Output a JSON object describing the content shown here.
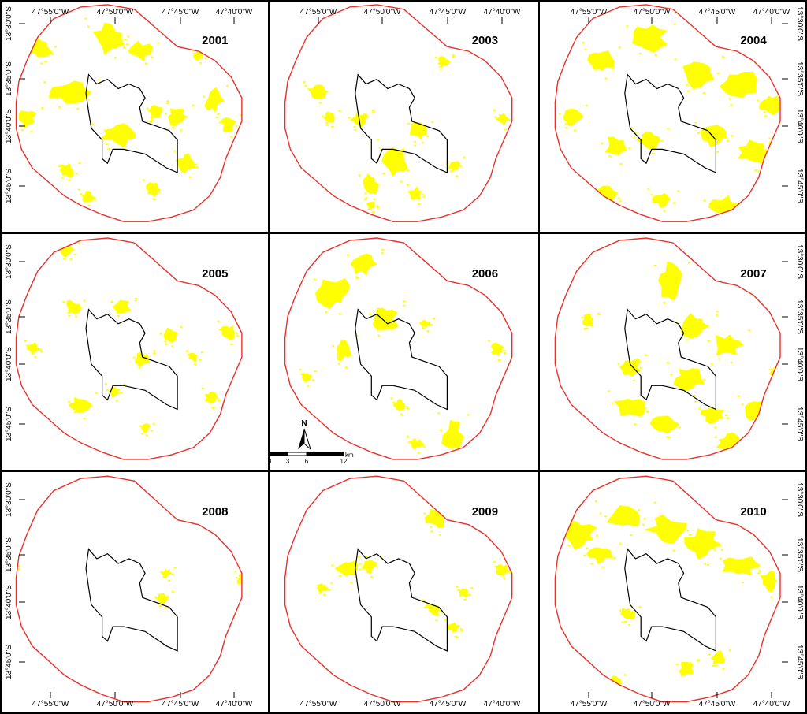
{
  "figure": {
    "panels": [
      {
        "year": "2001",
        "burned": [
          [
            0.1,
            0.16,
            0.1,
            0.09
          ],
          [
            0.34,
            0.1,
            0.13,
            0.13
          ],
          [
            0.48,
            0.18,
            0.09,
            0.08
          ],
          [
            0.18,
            0.34,
            0.16,
            0.11
          ],
          [
            0.06,
            0.46,
            0.08,
            0.09
          ],
          [
            0.36,
            0.52,
            0.17,
            0.11
          ],
          [
            0.55,
            0.44,
            0.06,
            0.07
          ],
          [
            0.62,
            0.46,
            0.08,
            0.08
          ],
          [
            0.76,
            0.38,
            0.07,
            0.1
          ],
          [
            0.82,
            0.5,
            0.06,
            0.07
          ],
          [
            0.66,
            0.66,
            0.07,
            0.08
          ],
          [
            0.54,
            0.78,
            0.05,
            0.06
          ],
          [
            0.3,
            0.82,
            0.05,
            0.05
          ],
          [
            0.72,
            0.22,
            0.04,
            0.04
          ],
          [
            0.22,
            0.7,
            0.06,
            0.06
          ]
        ]
      },
      {
        "year": "2003",
        "burned": [
          [
            0.14,
            0.36,
            0.07,
            0.07
          ],
          [
            0.42,
            0.62,
            0.1,
            0.14
          ],
          [
            0.52,
            0.52,
            0.07,
            0.08
          ],
          [
            0.34,
            0.74,
            0.07,
            0.1
          ],
          [
            0.62,
            0.24,
            0.05,
            0.05
          ],
          [
            0.3,
            0.48,
            0.07,
            0.07
          ],
          [
            0.2,
            0.48,
            0.05,
            0.05
          ],
          [
            0.66,
            0.68,
            0.05,
            0.06
          ],
          [
            0.84,
            0.48,
            0.05,
            0.06
          ],
          [
            0.52,
            0.8,
            0.05,
            0.06
          ],
          [
            0.36,
            0.86,
            0.04,
            0.04
          ]
        ]
      },
      {
        "year": "2004",
        "burned": [
          [
            0.18,
            0.2,
            0.1,
            0.12
          ],
          [
            0.34,
            0.1,
            0.14,
            0.12
          ],
          [
            0.52,
            0.24,
            0.14,
            0.14
          ],
          [
            0.68,
            0.3,
            0.14,
            0.14
          ],
          [
            0.82,
            0.4,
            0.09,
            0.09
          ],
          [
            0.08,
            0.46,
            0.08,
            0.08
          ],
          [
            0.24,
            0.58,
            0.1,
            0.1
          ],
          [
            0.36,
            0.56,
            0.1,
            0.08
          ],
          [
            0.6,
            0.54,
            0.1,
            0.09
          ],
          [
            0.74,
            0.6,
            0.12,
            0.11
          ],
          [
            0.2,
            0.8,
            0.1,
            0.09
          ],
          [
            0.42,
            0.82,
            0.08,
            0.07
          ],
          [
            0.62,
            0.84,
            0.14,
            0.1
          ],
          [
            0.82,
            0.76,
            0.08,
            0.09
          ],
          [
            0.86,
            0.58,
            0.06,
            0.06
          ]
        ]
      },
      {
        "year": "2005",
        "burned": [
          [
            0.22,
            0.04,
            0.06,
            0.06
          ],
          [
            0.24,
            0.28,
            0.06,
            0.06
          ],
          [
            0.42,
            0.28,
            0.07,
            0.06
          ],
          [
            0.5,
            0.5,
            0.06,
            0.06
          ],
          [
            0.6,
            0.4,
            0.06,
            0.06
          ],
          [
            0.26,
            0.68,
            0.08,
            0.08
          ],
          [
            0.4,
            0.64,
            0.05,
            0.05
          ],
          [
            0.82,
            0.38,
            0.06,
            0.07
          ],
          [
            0.76,
            0.66,
            0.05,
            0.06
          ],
          [
            0.1,
            0.46,
            0.05,
            0.05
          ],
          [
            0.7,
            0.5,
            0.04,
            0.04
          ],
          [
            0.52,
            0.8,
            0.04,
            0.04
          ]
        ]
      },
      {
        "year": "2006",
        "burned": [
          [
            0.18,
            0.18,
            0.12,
            0.14
          ],
          [
            0.3,
            0.08,
            0.1,
            0.1
          ],
          [
            0.38,
            0.3,
            0.1,
            0.12
          ],
          [
            0.24,
            0.44,
            0.07,
            0.1
          ],
          [
            0.56,
            0.36,
            0.04,
            0.04
          ],
          [
            0.64,
            0.78,
            0.08,
            0.14
          ],
          [
            0.52,
            0.86,
            0.05,
            0.05
          ],
          [
            0.82,
            0.46,
            0.05,
            0.06
          ],
          [
            0.46,
            0.7,
            0.05,
            0.05
          ],
          [
            0.12,
            0.58,
            0.04,
            0.05
          ]
        ]
      },
      {
        "year": "2007",
        "burned": [
          [
            0.44,
            0.12,
            0.1,
            0.16
          ],
          [
            0.52,
            0.34,
            0.12,
            0.1
          ],
          [
            0.64,
            0.42,
            0.12,
            0.1
          ],
          [
            0.3,
            0.52,
            0.08,
            0.08
          ],
          [
            0.5,
            0.56,
            0.12,
            0.1
          ],
          [
            0.28,
            0.68,
            0.12,
            0.1
          ],
          [
            0.42,
            0.76,
            0.1,
            0.08
          ],
          [
            0.6,
            0.72,
            0.1,
            0.08
          ],
          [
            0.76,
            0.7,
            0.1,
            0.1
          ],
          [
            0.66,
            0.84,
            0.1,
            0.08
          ],
          [
            0.86,
            0.56,
            0.05,
            0.06
          ],
          [
            0.16,
            0.34,
            0.05,
            0.06
          ]
        ]
      },
      {
        "year": "2008",
        "burned": [
          [
            0.02,
            0.4,
            0.04,
            0.08
          ],
          [
            0.58,
            0.5,
            0.05,
            0.05
          ],
          [
            0.6,
            0.4,
            0.04,
            0.04
          ],
          [
            0.88,
            0.42,
            0.04,
            0.05
          ]
        ]
      },
      {
        "year": "2009",
        "burned": [
          [
            0.58,
            0.14,
            0.08,
            0.1
          ],
          [
            0.24,
            0.36,
            0.1,
            0.08
          ],
          [
            0.34,
            0.36,
            0.06,
            0.06
          ],
          [
            0.58,
            0.54,
            0.06,
            0.06
          ],
          [
            0.66,
            0.62,
            0.05,
            0.05
          ],
          [
            0.84,
            0.38,
            0.05,
            0.05
          ],
          [
            0.7,
            0.48,
            0.04,
            0.04
          ],
          [
            0.18,
            0.46,
            0.04,
            0.04
          ]
        ]
      },
      {
        "year": "2010",
        "burned": [
          [
            0.08,
            0.2,
            0.14,
            0.12
          ],
          [
            0.24,
            0.14,
            0.16,
            0.1
          ],
          [
            0.4,
            0.18,
            0.16,
            0.12
          ],
          [
            0.54,
            0.24,
            0.14,
            0.12
          ],
          [
            0.68,
            0.34,
            0.14,
            0.1
          ],
          [
            0.82,
            0.4,
            0.08,
            0.1
          ],
          [
            0.18,
            0.3,
            0.1,
            0.08
          ],
          [
            0.3,
            0.56,
            0.06,
            0.06
          ],
          [
            0.86,
            0.64,
            0.06,
            0.06
          ],
          [
            0.52,
            0.78,
            0.06,
            0.06
          ],
          [
            0.64,
            0.74,
            0.06,
            0.06
          ],
          [
            0.26,
            0.84,
            0.05,
            0.05
          ]
        ]
      }
    ],
    "lon_labels": [
      "47°55'0\"W",
      "47°50'0\"W",
      "47°45'0\"W",
      "47°40'0\"W"
    ],
    "lat_labels": [
      "13°30'0\"S",
      "13°35'0\"S",
      "13°40'0\"S",
      "13°45'0\"S"
    ],
    "north_label": "N",
    "scale_ticks": [
      "0",
      "3",
      "6",
      "12"
    ],
    "scale_unit": "km",
    "colors": {
      "burned_area": "#ffff00",
      "buffer_boundary": "#e8312a",
      "reserve_boundary": "#000000",
      "panel_frame": "#000000"
    }
  }
}
